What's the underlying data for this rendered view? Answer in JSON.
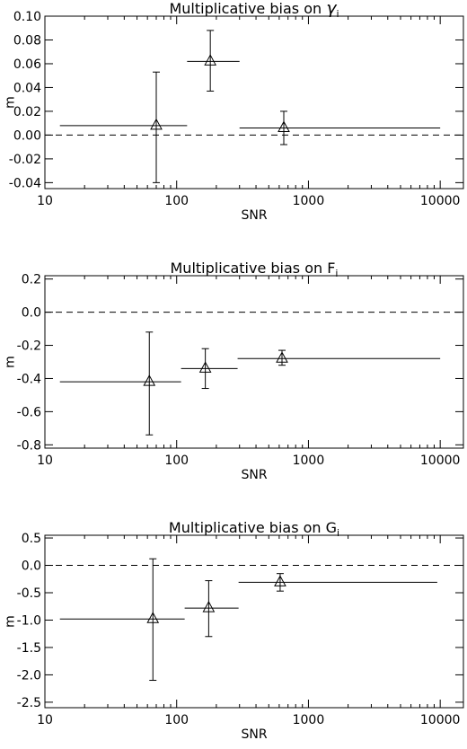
{
  "chart_data": [
    {
      "type": "scatter",
      "title": "Multiplicative bias on ",
      "title_symbol": "γ",
      "title_subscript": "i",
      "xlabel": "SNR",
      "ylabel": "m",
      "xscale": "log",
      "xlim": [
        10,
        15000
      ],
      "ylim": [
        -0.045,
        0.1
      ],
      "xticks": [
        10,
        100,
        1000,
        10000
      ],
      "xtick_labels": [
        "10",
        "100",
        "1000",
        "10000"
      ],
      "yticks": [
        0.1,
        0.08,
        0.06,
        0.04,
        0.02,
        0.0,
        -0.02,
        -0.04
      ],
      "ytick_labels": [
        "0.10",
        "0.08",
        "0.06",
        "0.04",
        "0.02",
        "0.00",
        "-0.02",
        "-0.04"
      ],
      "reference_line": {
        "y": 0,
        "style": "dashed"
      },
      "marker": "triangle",
      "points": [
        {
          "x": 70,
          "y": 0.008,
          "x_range": [
            13,
            120
          ],
          "y_range": [
            -0.04,
            0.053
          ]
        },
        {
          "x": 180,
          "y": 0.062,
          "x_range": [
            120,
            300
          ],
          "y_range": [
            0.037,
            0.088
          ]
        },
        {
          "x": 650,
          "y": 0.006,
          "x_range": [
            300,
            10000
          ],
          "y_range": [
            -0.008,
            0.02
          ]
        }
      ]
    },
    {
      "type": "scatter",
      "title": "Multiplicative bias on F",
      "title_subscript": "i",
      "xlabel": "SNR",
      "ylabel": "m",
      "xscale": "log",
      "xlim": [
        10,
        15000
      ],
      "ylim": [
        -0.82,
        0.22
      ],
      "xticks": [
        10,
        100,
        1000,
        10000
      ],
      "xtick_labels": [
        "10",
        "100",
        "1000",
        "10000"
      ],
      "yticks": [
        0.2,
        0.0,
        -0.2,
        -0.4,
        -0.6,
        -0.8
      ],
      "ytick_labels": [
        "0.2",
        "0.0",
        "-0.2",
        "-0.4",
        "-0.6",
        "-0.8"
      ],
      "reference_line": {
        "y": 0,
        "style": "dashed"
      },
      "marker": "triangle",
      "points": [
        {
          "x": 62,
          "y": -0.42,
          "x_range": [
            13,
            108
          ],
          "y_range": [
            -0.74,
            -0.12
          ]
        },
        {
          "x": 165,
          "y": -0.34,
          "x_range": [
            108,
            290
          ],
          "y_range": [
            -0.46,
            -0.22
          ]
        },
        {
          "x": 630,
          "y": -0.28,
          "x_range": [
            290,
            10000
          ],
          "y_range": [
            -0.32,
            -0.23
          ]
        }
      ]
    },
    {
      "type": "scatter",
      "title": "Multiplicative bias on G",
      "title_subscript": "i",
      "xlabel": "SNR",
      "ylabel": "m",
      "xscale": "log",
      "xlim": [
        10,
        15000
      ],
      "ylim": [
        -2.6,
        0.55
      ],
      "xticks": [
        10,
        100,
        1000,
        10000
      ],
      "xtick_labels": [
        "10",
        "100",
        "1000",
        "10000"
      ],
      "yticks": [
        0.5,
        0.0,
        -0.5,
        -1.0,
        -1.5,
        -2.0,
        -2.5
      ],
      "ytick_labels": [
        "0.5",
        "0.0",
        "-0.5",
        "-1.0",
        "-1.5",
        "-2.0",
        "-2.5"
      ],
      "reference_line": {
        "y": 0,
        "style": "dashed"
      },
      "marker": "triangle",
      "points": [
        {
          "x": 66,
          "y": -0.98,
          "x_range": [
            13,
            115
          ],
          "y_range": [
            -2.1,
            0.12
          ]
        },
        {
          "x": 175,
          "y": -0.78,
          "x_range": [
            115,
            295
          ],
          "y_range": [
            -1.3,
            -0.28
          ]
        },
        {
          "x": 610,
          "y": -0.31,
          "x_range": [
            295,
            9500
          ],
          "y_range": [
            -0.47,
            -0.15
          ]
        }
      ]
    }
  ]
}
